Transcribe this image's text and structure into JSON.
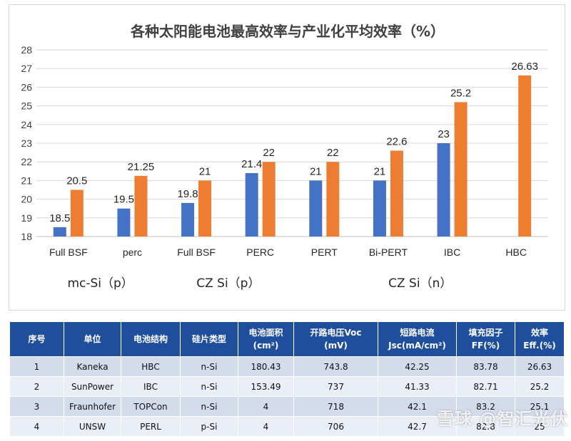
{
  "chart_data": {
    "type": "bar",
    "title": "各种太阳能电池最高效率与产业化平均效率（%）",
    "ylim": [
      18,
      28
    ],
    "yticks": [
      "18",
      "19",
      "20",
      "21",
      "22",
      "23",
      "24",
      "25",
      "26",
      "27",
      "28"
    ],
    "grid": true,
    "categories": [
      "Full BSF",
      "perc",
      "Full BSF",
      "PERC",
      "PERT",
      "Bi-PERT",
      "IBC",
      "HBC"
    ],
    "series": [
      {
        "color": "#4472c4",
        "values": [
          18.5,
          19.5,
          19.8,
          21.4,
          21,
          21,
          23,
          null
        ],
        "labels": [
          "18.5",
          "19.5",
          "19.8",
          "21.4",
          "21",
          "21",
          "23",
          ""
        ]
      },
      {
        "color": "#ed7d31",
        "values": [
          20.5,
          21.25,
          21,
          22,
          22,
          22.6,
          25.2,
          26.63
        ],
        "labels": [
          "20.5",
          "21.25",
          "21",
          "22",
          "22",
          "22.6",
          "25.2",
          "26.63"
        ]
      }
    ],
    "groups": [
      {
        "label": "mc-Si（p）",
        "span": [
          0,
          1
        ]
      },
      {
        "label": "CZ Si（p）",
        "span": [
          2,
          3
        ]
      },
      {
        "label": "CZ Si（n）",
        "span": [
          4,
          7
        ]
      }
    ]
  },
  "table": {
    "headers": [
      [
        "序号"
      ],
      [
        "单位"
      ],
      [
        "电池结构"
      ],
      [
        "硅片类型"
      ],
      [
        "电池面积",
        "(cm²)"
      ],
      [
        "开路电压Voc",
        "(mV)"
      ],
      [
        "短路电流",
        "Jsc(mA/cm²)"
      ],
      [
        "填充因子",
        "FF(%)"
      ],
      [
        "效率",
        "Eff.(%)"
      ]
    ],
    "rows": [
      [
        "1",
        "Kaneka",
        "HBC",
        "n-Si",
        "180.43",
        "743.8",
        "42.25",
        "83.78",
        "26.63"
      ],
      [
        "2",
        "SunPower",
        "IBC",
        "n-Si",
        "153.49",
        "737",
        "41.33",
        "82.71",
        "25.2"
      ],
      [
        "3",
        "Fraunhofer",
        "TOPCon",
        "n-Si",
        "4",
        "718",
        "42.1",
        "83.2",
        "25.1"
      ],
      [
        "4",
        "UNSW",
        "PERL",
        "p-Si",
        "4",
        "706",
        "42.7",
        "82.8",
        "25"
      ]
    ]
  },
  "watermark": "雪球 @智汇光伏"
}
